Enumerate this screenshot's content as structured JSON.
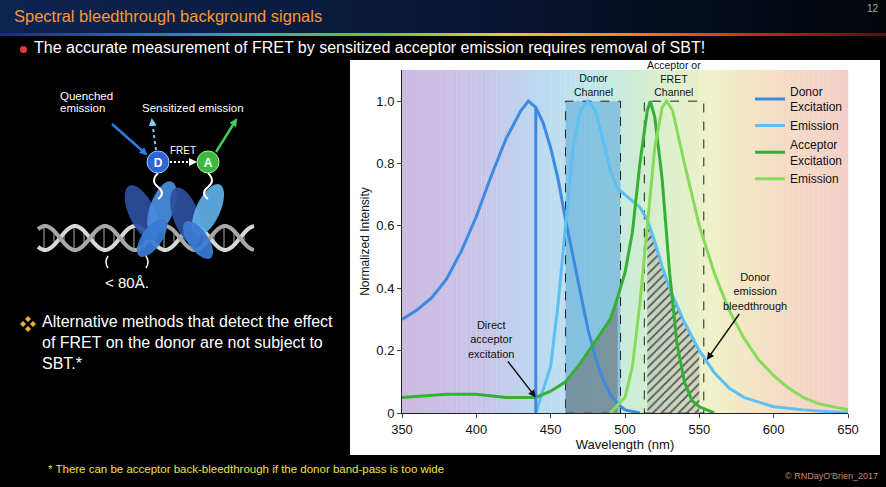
{
  "slide": {
    "title": "Spectral bleedthrough background signals",
    "page": "12",
    "bullet": "The accurate measurement of FRET by sensitized acceptor emission requires removal of SBT!",
    "note": "Alternative methods that detect the effect of FRET on the donor are not subject to SBT.*",
    "footnote": "* There can be acceptor back-bleedthrough if the donor band-pass is too wide",
    "copyright": "© RNDayO'Brien_2017",
    "diagram": {
      "quenched": "Quenched emission",
      "sensitized": "Sensitized emission",
      "fret": "FRET",
      "donor": "D",
      "acceptor": "A",
      "distance": "< 80Å."
    }
  },
  "chart_data": {
    "type": "line",
    "xlabel": "Wavelength (nm)",
    "ylabel": "Normalized Intensity",
    "xlim": [
      350,
      650
    ],
    "xticks": [
      350,
      400,
      450,
      500,
      550,
      600,
      650
    ],
    "ylim": [
      0,
      1.1
    ],
    "yticks": [
      0,
      0.2,
      0.4,
      0.6,
      0.8,
      {
        "value": 1,
        "label": "1.0"
      }
    ],
    "grid": false,
    "legend": "top right",
    "series": [
      {
        "name": "Donor Excitation",
        "color": "#3b8be0",
        "x": [
          350,
          360,
          370,
          380,
          390,
          400,
          410,
          420,
          430,
          435,
          440,
          445,
          450,
          455,
          460,
          465,
          470,
          475,
          480,
          485,
          490,
          495,
          500,
          510
        ],
        "values": [
          0.3,
          0.33,
          0.37,
          0.43,
          0.52,
          0.63,
          0.76,
          0.88,
          0.97,
          1.0,
          0.98,
          0.93,
          0.85,
          0.75,
          0.62,
          0.5,
          0.38,
          0.27,
          0.18,
          0.11,
          0.06,
          0.03,
          0.01,
          0
        ]
      },
      {
        "name": "Emission",
        "color": "#5cbff5",
        "x": [
          440,
          450,
          455,
          460,
          465,
          470,
          475,
          480,
          485,
          490,
          495,
          500,
          505,
          510,
          515,
          520,
          525,
          530,
          540,
          550,
          560,
          570,
          580,
          590,
          600,
          620,
          650
        ],
        "values": [
          0,
          0.15,
          0.35,
          0.6,
          0.85,
          0.97,
          1.0,
          0.97,
          0.88,
          0.78,
          0.72,
          0.7,
          0.68,
          0.66,
          0.62,
          0.55,
          0.47,
          0.4,
          0.29,
          0.2,
          0.13,
          0.08,
          0.05,
          0.035,
          0.02,
          0.01,
          0
        ]
      },
      {
        "name": "Acceptor Excitation",
        "color": "#34b034",
        "x": [
          350,
          380,
          400,
          420,
          440,
          450,
          460,
          470,
          480,
          490,
          495,
          500,
          505,
          510,
          515,
          517,
          520,
          525,
          530,
          535,
          540,
          545,
          550,
          560
        ],
        "values": [
          0.05,
          0.06,
          0.06,
          0.05,
          0.05,
          0.07,
          0.1,
          0.16,
          0.23,
          0.3,
          0.37,
          0.45,
          0.58,
          0.8,
          0.97,
          1.0,
          0.95,
          0.75,
          0.45,
          0.22,
          0.1,
          0.04,
          0.02,
          0
        ]
      },
      {
        "name": "Emission",
        "color": "#86dc5a",
        "x": [
          490,
          500,
          505,
          510,
          515,
          520,
          525,
          528,
          532,
          540,
          550,
          560,
          570,
          580,
          590,
          600,
          610,
          620,
          630,
          650
        ],
        "values": [
          0,
          0.05,
          0.15,
          0.35,
          0.6,
          0.85,
          0.98,
          1.0,
          0.97,
          0.8,
          0.6,
          0.45,
          0.33,
          0.24,
          0.17,
          0.12,
          0.08,
          0.05,
          0.03,
          0.01
        ]
      }
    ],
    "channels": [
      {
        "name": "Donor Channel",
        "range": [
          460,
          497
        ],
        "top": 1.0
      },
      {
        "name": "Acceptor or FRET Channel",
        "range": [
          513,
          553
        ],
        "top": 1.0
      }
    ],
    "excitation_line": {
      "x": 440,
      "top": 0.98
    },
    "annotations": [
      {
        "text": "Direct acceptor excitation",
        "x": 440,
        "y": 0.05
      },
      {
        "text": "Donor emission bleedthrough",
        "x": 555,
        "y": 0.17
      }
    ]
  }
}
